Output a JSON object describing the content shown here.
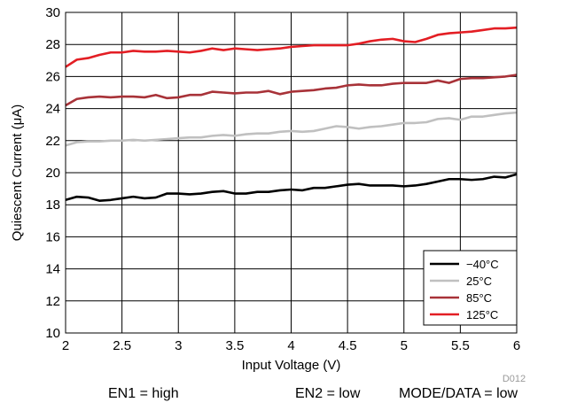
{
  "chart_data": {
    "type": "line",
    "xlabel": "Input Voltage (V)",
    "ylabel": "Quiescent Current (μA)",
    "xlim": [
      2,
      6
    ],
    "ylim": [
      10,
      30
    ],
    "x_ticks": [
      "2",
      "2.5",
      "3",
      "3.5",
      "4",
      "4.5",
      "5",
      "5.5",
      "6"
    ],
    "y_ticks": [
      "10",
      "12",
      "14",
      "16",
      "18",
      "20",
      "22",
      "24",
      "26",
      "28",
      "30"
    ],
    "grid": true,
    "legend_position": "bottom-right",
    "figure_code": "D012",
    "x": [
      2.0,
      2.1,
      2.2,
      2.3,
      2.4,
      2.5,
      2.6,
      2.7,
      2.8,
      2.9,
      3.0,
      3.1,
      3.2,
      3.3,
      3.4,
      3.5,
      3.6,
      3.7,
      3.8,
      3.9,
      4.0,
      4.1,
      4.2,
      4.3,
      4.4,
      4.5,
      4.6,
      4.7,
      4.8,
      4.9,
      5.0,
      5.1,
      5.2,
      5.3,
      5.4,
      5.5,
      5.6,
      5.7,
      5.8,
      5.9,
      6.0
    ],
    "series": [
      {
        "name": "−40°C",
        "color": "#000000",
        "values": [
          18.3,
          18.5,
          18.45,
          18.25,
          18.3,
          18.4,
          18.5,
          18.4,
          18.45,
          18.7,
          18.7,
          18.65,
          18.7,
          18.8,
          18.85,
          18.7,
          18.7,
          18.8,
          18.8,
          18.9,
          18.95,
          18.9,
          19.05,
          19.05,
          19.15,
          19.25,
          19.3,
          19.2,
          19.2,
          19.2,
          19.15,
          19.2,
          19.3,
          19.45,
          19.6,
          19.6,
          19.55,
          19.6,
          19.75,
          19.7,
          19.9
        ]
      },
      {
        "name": "25°C",
        "color": "#c0c0c0",
        "values": [
          21.7,
          21.9,
          21.95,
          21.95,
          22.0,
          22.0,
          22.05,
          22.0,
          22.05,
          22.1,
          22.15,
          22.2,
          22.2,
          22.3,
          22.35,
          22.3,
          22.4,
          22.45,
          22.45,
          22.55,
          22.6,
          22.55,
          22.6,
          22.75,
          22.9,
          22.85,
          22.75,
          22.85,
          22.9,
          23.0,
          23.1,
          23.1,
          23.15,
          23.35,
          23.4,
          23.3,
          23.5,
          23.5,
          23.6,
          23.7,
          23.75
        ]
      },
      {
        "name": "85°C",
        "color": "#a83238",
        "values": [
          24.2,
          24.6,
          24.7,
          24.75,
          24.7,
          24.75,
          24.75,
          24.7,
          24.85,
          24.65,
          24.7,
          24.85,
          24.85,
          25.05,
          25.0,
          24.95,
          25.0,
          25.0,
          25.1,
          24.9,
          25.05,
          25.1,
          25.15,
          25.25,
          25.3,
          25.45,
          25.5,
          25.45,
          25.45,
          25.55,
          25.6,
          25.6,
          25.6,
          25.75,
          25.6,
          25.85,
          25.9,
          25.9,
          25.95,
          26.0,
          26.1
        ]
      },
      {
        "name": "125°C",
        "color": "#e31e24",
        "values": [
          26.6,
          27.05,
          27.15,
          27.35,
          27.5,
          27.5,
          27.6,
          27.55,
          27.55,
          27.6,
          27.55,
          27.5,
          27.6,
          27.75,
          27.65,
          27.75,
          27.7,
          27.65,
          27.7,
          27.75,
          27.85,
          27.9,
          27.95,
          27.95,
          27.95,
          27.95,
          28.05,
          28.2,
          28.3,
          28.35,
          28.2,
          28.15,
          28.35,
          28.6,
          28.7,
          28.75,
          28.8,
          28.9,
          29.0,
          29.0,
          29.05
        ]
      }
    ]
  },
  "footnotes": {
    "en1": "EN1 = high",
    "en2": "EN2 = low",
    "mode": "MODE/DATA = low"
  }
}
